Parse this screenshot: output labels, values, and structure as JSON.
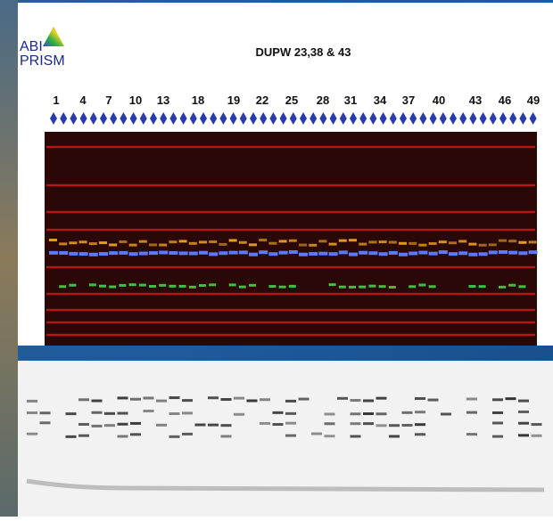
{
  "logo": {
    "line1": "ABI",
    "line2": "PRISM"
  },
  "title": "DUPW 23,38 & 43",
  "lane_labels": [
    "1",
    "4",
    "7",
    "10",
    "13",
    "18",
    "19",
    "22",
    "25",
    "28",
    "31",
    "34",
    "37",
    "40",
    "43",
    "46",
    "49"
  ]
}
